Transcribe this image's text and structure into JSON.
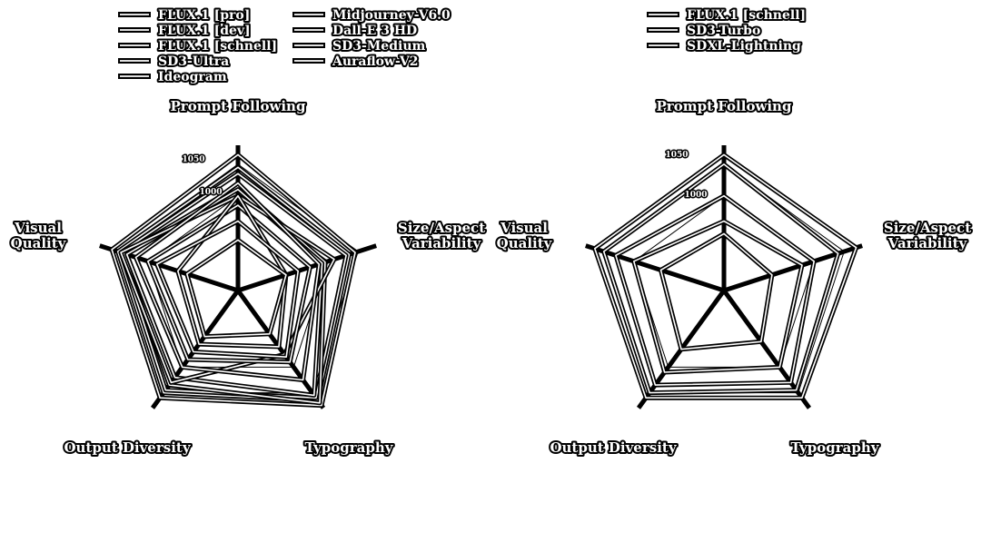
{
  "chart_data": [
    {
      "type": "radar",
      "axes": [
        "Prompt Following",
        "Size/Aspect\nVariability",
        "Typography",
        "Output Diversity",
        "Visual\nQuality"
      ],
      "range": [
        850,
        1080
      ],
      "tick_values": [
        1050,
        1000
      ],
      "tick_labels": [
        "1050",
        "1000"
      ],
      "legend_placement": "top",
      "legend_columns": 2,
      "series": [
        {
          "name": "FLUX.1 [pro]",
          "values": [
            1065,
            1045,
            1075,
            1060,
            1060
          ]
        },
        {
          "name": "FLUX.1 [dev]",
          "values": [
            1045,
            1035,
            1065,
            1050,
            1050
          ]
        },
        {
          "name": "FLUX.1 [schnell]",
          "values": [
            1035,
            1030,
            1060,
            1045,
            1045
          ]
        },
        {
          "name": "SD3-Ultra",
          "values": [
            1015,
            995,
            1070,
            1035,
            1040
          ]
        },
        {
          "name": "Ideogram",
          "values": [
            1010,
            990,
            1055,
            1020,
            1035
          ]
        },
        {
          "name": "Midjourney-V6.0",
          "values": [
            1000,
            1010,
            975,
            1030,
            1045
          ]
        },
        {
          "name": "Dall-E 3 HD",
          "values": [
            1020,
            985,
            1025,
            1000,
            1020
          ]
        },
        {
          "name": "SD3-Medium",
          "values": [
            985,
            970,
            990,
            985,
            1000
          ]
        },
        {
          "name": "Auraflow-V2",
          "values": [
            1000,
            930,
            960,
            955,
            950
          ]
        },
        {
          "name": "",
          "values": [
            960,
            950,
            980,
            970,
            985
          ]
        },
        {
          "name": "",
          "values": [
            930,
            930,
            935,
            940,
            935
          ]
        }
      ]
    },
    {
      "type": "radar",
      "axes": [
        "Prompt Following",
        "Size/Aspect\nVariability",
        "Typography",
        "Output Diversity",
        "Visual\nQuality"
      ],
      "range": [
        850,
        1080
      ],
      "tick_values": [
        1050,
        1000
      ],
      "tick_labels": [
        "1050",
        "1000"
      ],
      "legend_placement": "top",
      "legend_columns": 1,
      "series": [
        {
          "name": "FLUX.1 [schnell]",
          "values": [
            1065,
            1070,
            1060,
            1060,
            1065
          ]
        },
        {
          "name": "SD3-Turbo",
          "values": [
            1050,
            1040,
            1045,
            1050,
            1050
          ]
        },
        {
          "name": "SDXL-Lightning",
          "values": [
            1000,
            1000,
            1030,
            1035,
            1030
          ]
        },
        {
          "name": "",
          "values": [
            960,
            980,
            1000,
            1010,
            1000
          ]
        },
        {
          "name": "",
          "values": [
            940,
            930,
            950,
            965,
            955
          ]
        }
      ]
    }
  ]
}
